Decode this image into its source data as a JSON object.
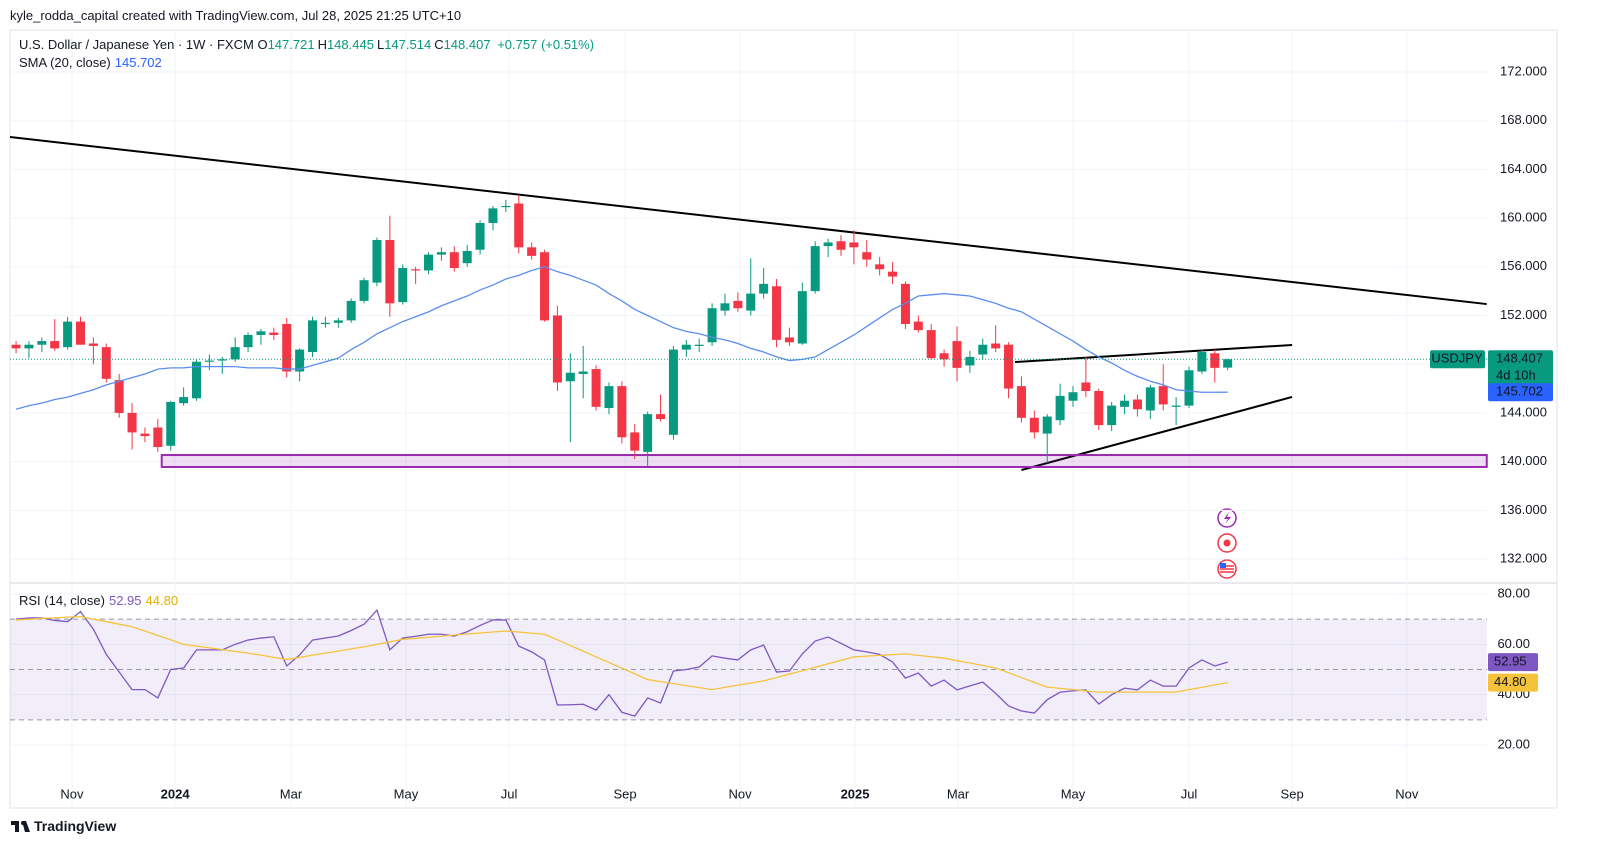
{
  "header": "kyle_rodda_capital created with TradingView.com, Jul 28, 2025 21:25 UTC+10",
  "chart_data": {
    "type": "candlestick",
    "title": "U.S. Dollar / Japanese Yen · 1W · FXCM",
    "legend_values": [
      {
        "label": "O",
        "value": "147.721"
      },
      {
        "label": "H",
        "value": "148.445"
      },
      {
        "label": "L",
        "value": "147.514"
      },
      {
        "label": "C",
        "value": "148.407"
      }
    ],
    "change": "+0.757 (+0.51%)",
    "symbol": "USDJPY",
    "last_price_label": "148.407",
    "countdown": "4d 10h",
    "xlim": [
      -0.47,
      119.55
    ],
    "xticks": [
      {
        "value": 4.34,
        "label": "Nov"
      },
      {
        "value": 12.34,
        "label": "2024"
      },
      {
        "value": 21.33,
        "label": "Mar"
      },
      {
        "value": 30.25,
        "label": "May"
      },
      {
        "value": 38.25,
        "label": "Jul"
      },
      {
        "value": 47.25,
        "label": "Sep"
      },
      {
        "value": 56.17,
        "label": "Nov"
      },
      {
        "value": 65.09,
        "label": "2025"
      },
      {
        "value": 73.08,
        "label": "Mar"
      },
      {
        "value": 82.0,
        "label": "May"
      },
      {
        "value": 91.0,
        "label": "Jul"
      },
      {
        "value": 99.0,
        "label": "Sep"
      },
      {
        "value": 107.9,
        "label": "Nov"
      }
    ],
    "ylim": [
      130.03,
      175.45
    ],
    "yticks": [
      {
        "value": 172,
        "label": "172.000"
      },
      {
        "value": 168,
        "label": "168.000"
      },
      {
        "value": 164,
        "label": "164.000"
      },
      {
        "value": 160,
        "label": "160.000"
      },
      {
        "value": 156,
        "label": "156.000"
      },
      {
        "value": 152,
        "label": "152.000"
      },
      {
        "value": 148,
        "label": "148.000"
      },
      {
        "value": 144,
        "label": "144.000"
      },
      {
        "value": 140,
        "label": "140.000"
      },
      {
        "value": 136,
        "label": "136.000"
      },
      {
        "value": 132,
        "label": "132.000"
      }
    ],
    "grid": true,
    "series": [
      {
        "name": "USDJPY",
        "up_color": "#089981",
        "down_color": "#f23645",
        "open": [
          149.6,
          149.3,
          149.6,
          149.9,
          149.4,
          151.5,
          149.7,
          149.4,
          146.7,
          144.0,
          142.3,
          142.8,
          141.3,
          144.8,
          145.2,
          148.2,
          148.3,
          148.4,
          149.4,
          150.4,
          150.6,
          151.3,
          147.4,
          149.0,
          151.3,
          151.4,
          151.6,
          153.2,
          154.7,
          158.2,
          153.1,
          155.8,
          155.7,
          157.0,
          157.2,
          156.3,
          157.4,
          159.6,
          160.9,
          161.2,
          157.6,
          157.2,
          152.0,
          146.6,
          147.2,
          147.6,
          144.4,
          146.2,
          142.4,
          140.8,
          143.9,
          142.2,
          149.2,
          149.5,
          149.8,
          152.4,
          153.2,
          152.4,
          153.8,
          154.4,
          150.2,
          149.7,
          154.0,
          157.7,
          158.1,
          158.0,
          157.2,
          156.2,
          155.6,
          154.6,
          151.5,
          150.8,
          148.9,
          149.9,
          147.9,
          148.8,
          149.7,
          149.6,
          146.2,
          143.6,
          142.3,
          143.4,
          145.0,
          146.5,
          145.8,
          143.0,
          144.5,
          145.1,
          144.2,
          146.2,
          144.5,
          144.6,
          147.4,
          148.9,
          147.721
        ],
        "high": [
          149.9,
          149.9,
          150.2,
          151.7,
          151.9,
          151.9,
          150.2,
          149.7,
          147.2,
          144.8,
          142.8,
          143.5,
          145.0,
          146.1,
          148.4,
          148.8,
          148.6,
          150.2,
          150.6,
          150.9,
          151.0,
          151.8,
          149.3,
          151.9,
          151.9,
          151.8,
          153.4,
          155.1,
          158.4,
          160.2,
          156.2,
          156.0,
          157.2,
          157.6,
          157.7,
          157.8,
          159.8,
          161.0,
          161.5,
          161.9,
          158.0,
          157.4,
          152.8,
          148.9,
          149.5,
          147.9,
          146.5,
          146.6,
          143.1,
          144.1,
          145.5,
          149.5,
          150.0,
          150.1,
          153.0,
          153.8,
          153.9,
          156.7,
          155.9,
          155.0,
          151.0,
          154.7,
          158.1,
          158.3,
          158.6,
          159.0,
          158.2,
          156.8,
          156.4,
          154.8,
          152.0,
          151.3,
          149.2,
          151.1,
          149.1,
          150.1,
          151.2,
          149.8,
          147.0,
          144.2,
          143.9,
          146.4,
          146.2,
          148.6,
          146.0,
          144.9,
          145.5,
          145.5,
          146.3,
          148.0,
          145.3,
          147.8,
          149.2,
          149.2,
          148.445
        ],
        "low": [
          148.9,
          148.5,
          149.0,
          149.1,
          149.2,
          149.6,
          148.0,
          146.5,
          143.6,
          141.0,
          141.6,
          140.8,
          140.9,
          144.6,
          145.0,
          147.5,
          147.2,
          148.2,
          149.0,
          149.6,
          150.0,
          146.9,
          146.6,
          148.6,
          151.0,
          151.0,
          151.4,
          153.0,
          154.4,
          151.9,
          152.9,
          154.6,
          155.4,
          156.5,
          155.6,
          156.0,
          157.0,
          159.0,
          160.5,
          157.1,
          156.6,
          151.5,
          145.8,
          141.6,
          145.2,
          144.2,
          143.9,
          141.5,
          140.2,
          139.6,
          143.3,
          141.8,
          148.6,
          149.0,
          149.5,
          152.0,
          152.3,
          152.0,
          153.4,
          149.4,
          149.5,
          149.6,
          153.8,
          156.8,
          156.9,
          156.2,
          156.0,
          155.3,
          154.6,
          150.9,
          150.6,
          148.4,
          147.8,
          146.6,
          147.3,
          148.4,
          149.0,
          145.2,
          143.2,
          141.9,
          139.9,
          143.0,
          144.5,
          145.3,
          142.6,
          142.5,
          143.9,
          143.7,
          143.5,
          144.2,
          143.0,
          144.4,
          147.2,
          146.5,
          147.514
        ],
        "close": [
          149.3,
          149.6,
          149.9,
          149.3,
          151.5,
          149.6,
          149.5,
          146.8,
          144.0,
          142.4,
          142.1,
          141.2,
          144.9,
          145.3,
          148.2,
          148.3,
          148.4,
          149.4,
          150.4,
          150.7,
          150.4,
          147.4,
          149.2,
          151.6,
          151.4,
          151.6,
          153.2,
          154.9,
          158.2,
          153.0,
          155.9,
          155.7,
          157.0,
          157.2,
          155.9,
          157.3,
          159.6,
          160.8,
          161.0,
          157.6,
          156.9,
          151.6,
          146.5,
          147.3,
          147.4,
          144.5,
          146.2,
          142.0,
          140.9,
          143.9,
          143.5,
          149.2,
          149.6,
          149.6,
          152.6,
          153.0,
          152.6,
          153.8,
          154.6,
          150.0,
          149.8,
          154.0,
          157.7,
          158.0,
          157.4,
          157.6,
          156.6,
          155.8,
          155.2,
          151.3,
          150.8,
          148.5,
          148.4,
          147.7,
          148.6,
          149.6,
          149.3,
          146.0,
          143.6,
          142.4,
          143.7,
          145.4,
          145.7,
          145.8,
          143.0,
          144.6,
          145.0,
          144.3,
          146.1,
          144.7,
          144.6,
          147.5,
          149.0,
          147.7,
          148.407
        ]
      }
    ],
    "overlays": [
      {
        "name": "SMA (20, close)",
        "color": "#5b8def",
        "value_label": "145.702",
        "values": [
          144.3,
          144.6,
          144.8,
          145.1,
          145.3,
          145.6,
          145.9,
          146.3,
          146.6,
          146.9,
          147.2,
          147.6,
          147.7,
          147.7,
          147.8,
          147.8,
          147.8,
          147.8,
          147.7,
          147.7,
          147.7,
          147.6,
          147.6,
          147.9,
          148.2,
          148.5,
          149.2,
          149.8,
          150.5,
          151.0,
          151.5,
          151.9,
          152.3,
          152.8,
          153.2,
          153.6,
          154.1,
          154.5,
          155.0,
          155.3,
          155.7,
          156.0,
          155.6,
          155.3,
          154.9,
          154.5,
          153.8,
          153.2,
          152.5,
          152.0,
          151.5,
          151.0,
          150.7,
          150.5,
          150.2,
          150.0,
          149.7,
          149.3,
          149.0,
          148.6,
          148.3,
          148.4,
          148.6,
          149.2,
          149.8,
          150.4,
          151.1,
          151.8,
          152.5,
          153.0,
          153.6,
          153.7,
          153.8,
          153.7,
          153.6,
          153.3,
          153.0,
          152.6,
          152.3,
          151.7,
          151.1,
          150.5,
          149.9,
          149.2,
          148.6,
          148.1,
          147.5,
          147.0,
          146.6,
          146.3,
          145.9,
          145.8,
          145.7,
          145.7,
          145.702
        ]
      }
    ],
    "drawings": [
      {
        "type": "trendline",
        "color": "#000000",
        "x": [
          -0.47,
          114.1
        ],
        "y": [
          166.66,
          152.94
        ]
      },
      {
        "type": "trendline",
        "color": "#000000",
        "x": [
          77.5,
          99.0
        ],
        "y": [
          148.18,
          149.58
        ]
      },
      {
        "type": "trendline",
        "color": "#000000",
        "x": [
          78.0,
          99.0
        ],
        "y": [
          139.31,
          145.31
        ]
      },
      {
        "type": "zone",
        "color": "#9c27b0",
        "x": [
          11.3,
          114.1
        ],
        "y": [
          139.56,
          140.54
        ]
      }
    ],
    "rsi": {
      "title": "RSI (14, close)",
      "ylim": [
        -5.03,
        84.37
      ],
      "yticks": [
        {
          "value": 80,
          "label": "80.00"
        },
        {
          "value": 60,
          "label": "60.00"
        },
        {
          "value": 40,
          "label": "40.00"
        },
        {
          "value": 20,
          "label": "20.00"
        }
      ],
      "levels": [
        70,
        50,
        30
      ],
      "band": [
        30,
        70
      ],
      "series": [
        {
          "color": "#7e57c2",
          "value_label": "52.95",
          "values": [
            70,
            70.5,
            70.5,
            69.5,
            69,
            73,
            66,
            56,
            49,
            42,
            42,
            38.7,
            50,
            50.6,
            57.8,
            57.8,
            57.8,
            60,
            61.7,
            62.5,
            63,
            51.4,
            55.8,
            61.7,
            62.5,
            63.3,
            65.5,
            68,
            73.6,
            57.8,
            62.5,
            63.2,
            64,
            64,
            63.3,
            65,
            67.5,
            69.7,
            69.7,
            59.3,
            57,
            53.8,
            35.9,
            36,
            36.2,
            33.9,
            40,
            33,
            31.5,
            38.7,
            36.7,
            49.4,
            50,
            51,
            55.4,
            54.5,
            53.8,
            57.8,
            59.7,
            49,
            49.4,
            56.2,
            61.3,
            62.9,
            60.4,
            57.8,
            57,
            56,
            53,
            46.6,
            48.6,
            43.4,
            45.8,
            41.9,
            43.5,
            45,
            40.5,
            35.5,
            33.5,
            32.7,
            38,
            41,
            41.5,
            41.9,
            36.3,
            40,
            42.6,
            41.9,
            45.8,
            43.4,
            43.4,
            50.6,
            53.8,
            51.4,
            52.95
          ]
        },
        {
          "color": "#f5c33b",
          "value_label": "44.80",
          "values": [
            69.7,
            70,
            70.3,
            70.5,
            70.8,
            71,
            70,
            69,
            68,
            67,
            65.3,
            63.5,
            61.8,
            60,
            59.3,
            58.6,
            57.9,
            57.2,
            56.5,
            55.7,
            54.8,
            54,
            54.8,
            55.7,
            56.5,
            57.3,
            58.2,
            59,
            60,
            61,
            62,
            62.4,
            62.8,
            63.2,
            63.7,
            64.1,
            64.5,
            64.9,
            65.3,
            64.9,
            64.4,
            64,
            61.8,
            59.5,
            57.3,
            55,
            52.8,
            50.5,
            48.3,
            46,
            45.2,
            44.4,
            43.6,
            42.8,
            42,
            42.9,
            43.8,
            44.6,
            45.5,
            46.8,
            48.2,
            49.5,
            50.9,
            52.3,
            53.6,
            55,
            55.3,
            55.6,
            55.9,
            56.2,
            55.6,
            55.1,
            54.5,
            53.5,
            52.6,
            51.6,
            50.6,
            48.7,
            46.8,
            44.9,
            43,
            42.5,
            42,
            41.5,
            41,
            41,
            41,
            41,
            41,
            41,
            41,
            42,
            42.9,
            43.9,
            44.8
          ]
        }
      ]
    }
  },
  "footer": "TradingView"
}
